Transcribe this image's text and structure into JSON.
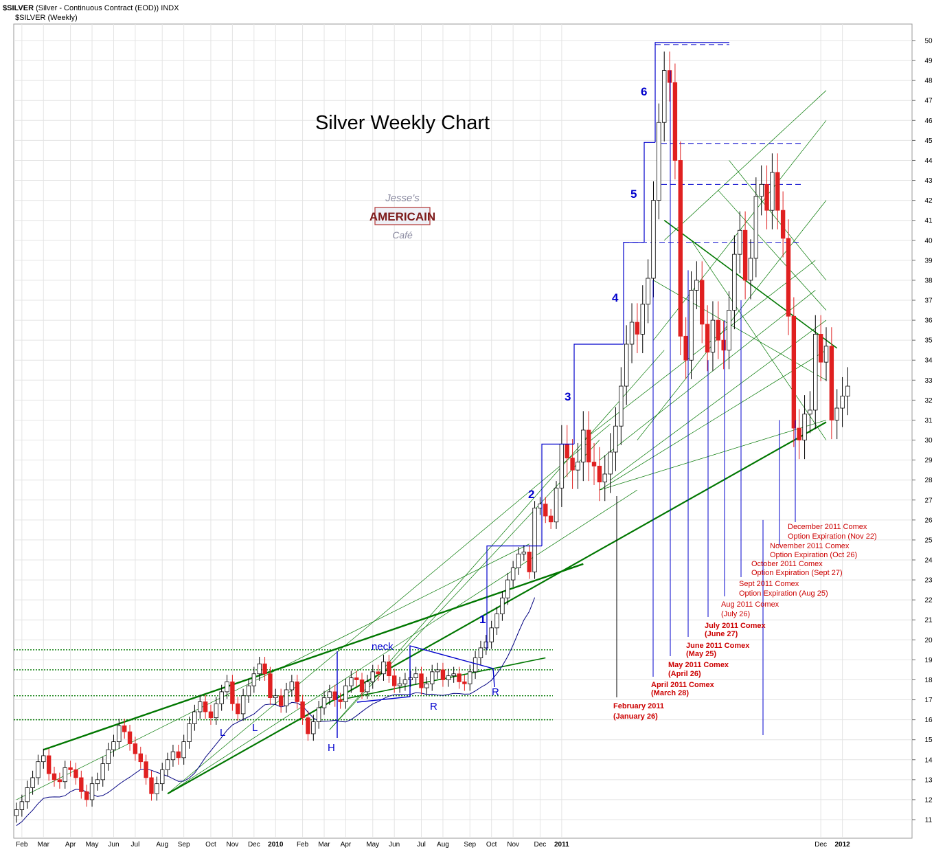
{
  "header": {
    "symbol": "$SILVER",
    "description": "(Silver - Continuous Contract (EOD))",
    "exchange": "INDX",
    "series_label": "$SILVER (Weekly)"
  },
  "logo": {
    "line1": "Jesse's",
    "line2": "AMERICAIN",
    "line3": "Café"
  },
  "colors": {
    "up_candle": "#ffffff",
    "down_candle": "#e02020",
    "trend": "#007700",
    "wave": "#0000cc",
    "annotation": "#cc0000"
  },
  "chart_data": {
    "type": "candlestick",
    "title": "Silver Weekly Chart",
    "ylim": [
      10.5,
      50.5
    ],
    "y_ticks": [
      11,
      12,
      13,
      14,
      15,
      16,
      17,
      18,
      19,
      20,
      21,
      22,
      23,
      24,
      25,
      26,
      27,
      28,
      29,
      30,
      31,
      32,
      33,
      34,
      35,
      36,
      37,
      38,
      39,
      40,
      41,
      42,
      43,
      44,
      45,
      46,
      47,
      48,
      49,
      50
    ],
    "x_labels": [
      {
        "label": "Feb",
        "week": 1
      },
      {
        "label": "Mar",
        "week": 5
      },
      {
        "label": "Apr",
        "week": 10
      },
      {
        "label": "May",
        "week": 14
      },
      {
        "label": "Jun",
        "week": 18
      },
      {
        "label": "Jul",
        "week": 22
      },
      {
        "label": "Aug",
        "week": 27
      },
      {
        "label": "Sep",
        "week": 31
      },
      {
        "label": "Oct",
        "week": 36
      },
      {
        "label": "Nov",
        "week": 40
      },
      {
        "label": "Dec",
        "week": 44
      },
      {
        "label": "2010",
        "week": 48
      },
      {
        "label": "Feb",
        "week": 53
      },
      {
        "label": "Mar",
        "week": 57
      },
      {
        "label": "Apr",
        "week": 61
      },
      {
        "label": "May",
        "week": 66
      },
      {
        "label": "Jun",
        "week": 70
      },
      {
        "label": "Jul",
        "week": 75
      },
      {
        "label": "Aug",
        "week": 79
      },
      {
        "label": "Sep",
        "week": 84
      },
      {
        "label": "Oct",
        "week": 88
      },
      {
        "label": "Nov",
        "week": 92
      },
      {
        "label": "Dec",
        "week": 97
      },
      {
        "label": "2011",
        "week": 101
      },
      {
        "label": "Dec",
        "week": 149
      },
      {
        "label": "2012",
        "week": 153
      }
    ],
    "weeks": 155,
    "closes": [
      11.5,
      11.9,
      12.6,
      13.1,
      13.9,
      14.2,
      13.3,
      13.0,
      12.9,
      13.6,
      13.5,
      13.1,
      12.4,
      12.0,
      12.8,
      13.0,
      13.8,
      14.5,
      14.9,
      15.7,
      15.4,
      14.8,
      14.3,
      13.9,
      13.1,
      12.3,
      12.8,
      13.5,
      14.0,
      14.4,
      14.1,
      14.9,
      15.8,
      16.4,
      16.9,
      16.4,
      16.1,
      16.8,
      17.4,
      17.9,
      16.8,
      16.3,
      17.2,
      17.7,
      18.3,
      18.8,
      18.3,
      17.1,
      17.2,
      16.7,
      17.5,
      17.9,
      16.9,
      16.1,
      15.3,
      15.9,
      16.6,
      17.1,
      17.4,
      17.0,
      16.9,
      17.7,
      18.1,
      18.0,
      17.4,
      17.9,
      18.4,
      18.3,
      18.9,
      18.2,
      17.7,
      17.8,
      18.0,
      18.1,
      18.3,
      17.6,
      17.8,
      18.4,
      18.5,
      18.0,
      18.2,
      18.3,
      17.9,
      17.8,
      18.4,
      19.1,
      19.6,
      19.9,
      20.6,
      21.3,
      22.1,
      23.0,
      23.6,
      24.3,
      24.4,
      23.4,
      26.6,
      26.8,
      26.2,
      25.9,
      27.6,
      29.8,
      29.1,
      28.5,
      28.9,
      30.5,
      28.9,
      28.7,
      27.9,
      28.3,
      29.4,
      30.7,
      32.7,
      34.8,
      35.9,
      35.3,
      36.8,
      38.1,
      42.0,
      45.9,
      48.5,
      47.9,
      44.0,
      35.2,
      34.0,
      37.5,
      38.0,
      35.8,
      34.4,
      36.0,
      35.0,
      34.5,
      36.5,
      39.3,
      40.5,
      38.0,
      39.1,
      42.2,
      42.8,
      41.5,
      43.4,
      41.5,
      40.1,
      36.2,
      30.6,
      30.0,
      31.3,
      31.5,
      35.3,
      33.9,
      34.7,
      31.0,
      31.6,
      32.2,
      32.7
    ]
  },
  "annotations": {
    "waves": [
      "1",
      "2",
      "3",
      "4",
      "5",
      "6"
    ],
    "pattern_labels": [
      "L",
      "L",
      "H",
      "R",
      "R",
      "neck"
    ],
    "expirations": [
      {
        "line1": "February 2011",
        "line2": "(January 26)"
      },
      {
        "line1": "April 2011 Comex",
        "line2": "(March 28)"
      },
      {
        "line1": "May 2011 Comex",
        "line2": "(April 26)"
      },
      {
        "line1": "June 2011 Comex",
        "line2": "(May 25)"
      },
      {
        "line1": "July 2011 Comex",
        "line2": "(June 27)"
      },
      {
        "line1": "Aug 2011 Comex",
        "line2": "(July 26)"
      },
      {
        "line1": "Sept 2011 Comex",
        "line2": "Option Expiration (Aug 25)"
      },
      {
        "line1": "October 2011 Comex",
        "line2": "Option Expiration (Sept 27)"
      },
      {
        "line1": "November 2011 Comex",
        "line2": "Option Expiration (Oct 26)"
      },
      {
        "line1": "December 2011 Comex",
        "line2": "Option Expiration (Nov 22)"
      }
    ]
  }
}
